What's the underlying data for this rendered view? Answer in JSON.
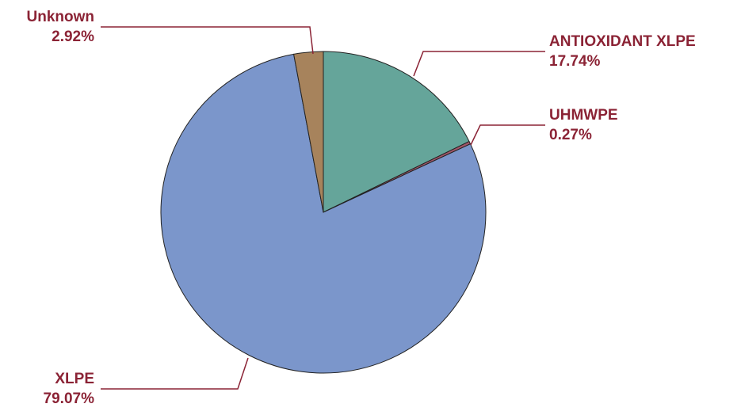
{
  "chart_data": {
    "type": "pie",
    "title": "",
    "start_angle_deg": 0,
    "direction": "clockwise",
    "label_color": "#8b2335",
    "slices": [
      {
        "label": "ANTIOXIDANT XLPE",
        "value": 17.74,
        "percent_text": "17.74%",
        "color": "#65a59a"
      },
      {
        "label": "UHMWPE",
        "value": 0.27,
        "percent_text": "0.27%",
        "color": "#a2576a"
      },
      {
        "label": "XLPE",
        "value": 79.07,
        "percent_text": "79.07%",
        "color": "#7b96cb"
      },
      {
        "label": "Unknown",
        "value": 2.92,
        "percent_text": "2.92%",
        "color": "#a7835c"
      }
    ]
  }
}
